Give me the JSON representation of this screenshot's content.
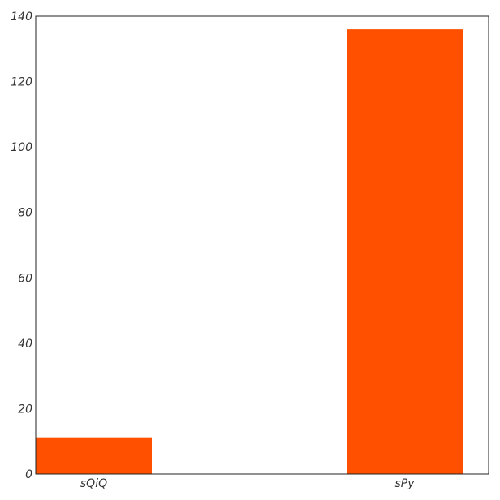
{
  "chart_data": {
    "type": "bar",
    "categories": [
      "sQiQ",
      "sPy"
    ],
    "values": [
      11,
      136
    ],
    "title": "",
    "xlabel": "",
    "ylabel": "",
    "ylim": [
      0,
      140
    ],
    "yticks": [
      0,
      20,
      40,
      60,
      80,
      100,
      120,
      140
    ],
    "grid": false,
    "bar_color": "#ff5000",
    "axis_color": "#222222"
  }
}
